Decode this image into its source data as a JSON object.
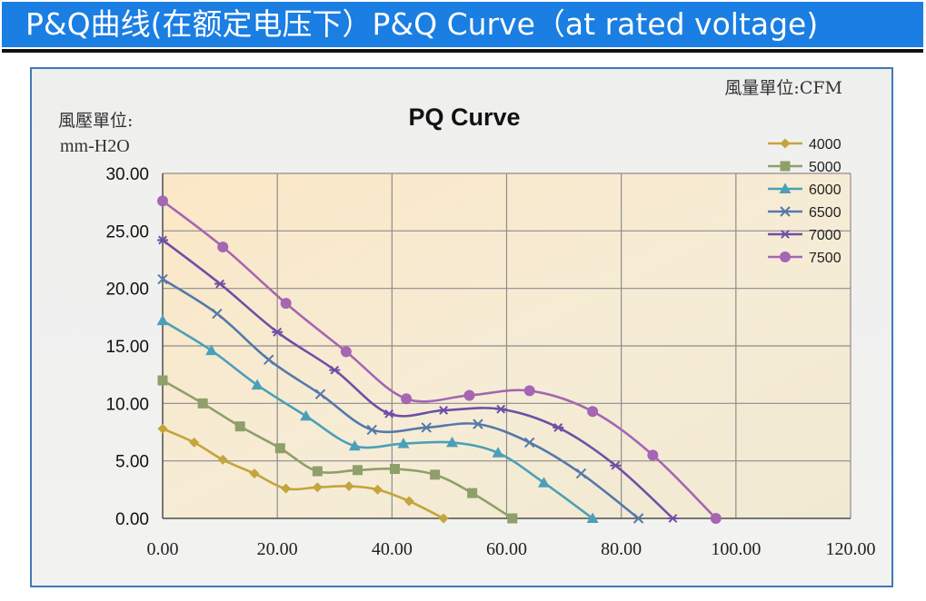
{
  "banner": {
    "title": "P&Q曲线(在额定电压下）P&Q Curve（at rated voltage)"
  },
  "chart_data": {
    "type": "line",
    "title": "PQ Curve",
    "ylabel_line1": "風壓單位:",
    "ylabel_line2": "mm-H2O",
    "xlabel": "風量單位:CFM",
    "xlim": [
      0,
      120
    ],
    "ylim": [
      0,
      30
    ],
    "xticks": [
      "0.00",
      "20.00",
      "40.00",
      "60.00",
      "80.00",
      "100.00",
      "120.00"
    ],
    "yticks": [
      "0.00",
      "5.00",
      "10.00",
      "15.00",
      "20.00",
      "25.00",
      "30.00"
    ],
    "grid": true,
    "legend_position": "top-right",
    "series": [
      {
        "name": "4000",
        "color": "#c4a43d",
        "marker": "diamond",
        "points": [
          [
            0,
            7.8
          ],
          [
            5.5,
            6.6
          ],
          [
            10.5,
            5.1
          ],
          [
            16,
            3.9
          ],
          [
            21.5,
            2.6
          ],
          [
            27,
            2.7
          ],
          [
            32.5,
            2.8
          ],
          [
            37.5,
            2.5
          ],
          [
            43,
            1.5
          ],
          [
            49,
            0
          ]
        ]
      },
      {
        "name": "5000",
        "color": "#8f9f6a",
        "marker": "square",
        "points": [
          [
            0,
            12
          ],
          [
            7,
            10
          ],
          [
            13.5,
            8
          ],
          [
            20.5,
            6.1
          ],
          [
            27,
            4.1
          ],
          [
            34,
            4.2
          ],
          [
            40.5,
            4.3
          ],
          [
            47.5,
            3.8
          ],
          [
            54,
            2.2
          ],
          [
            61,
            0
          ]
        ]
      },
      {
        "name": "6000",
        "color": "#4aa0b8",
        "marker": "triangle",
        "points": [
          [
            0,
            17.2
          ],
          [
            8.5,
            14.6
          ],
          [
            16.5,
            11.6
          ],
          [
            25,
            8.9
          ],
          [
            33.5,
            6.3
          ],
          [
            42,
            6.5
          ],
          [
            50.5,
            6.6
          ],
          [
            58.5,
            5.7
          ],
          [
            66.5,
            3.1
          ],
          [
            75,
            0
          ]
        ]
      },
      {
        "name": "6500",
        "color": "#5479aa",
        "marker": "x",
        "points": [
          [
            0,
            20.8
          ],
          [
            9.5,
            17.8
          ],
          [
            18.5,
            13.8
          ],
          [
            27.5,
            10.8
          ],
          [
            36.5,
            7.7
          ],
          [
            46,
            7.9
          ],
          [
            55,
            8.2
          ],
          [
            64,
            6.6
          ],
          [
            73,
            3.9
          ],
          [
            83,
            0
          ]
        ]
      },
      {
        "name": "7000",
        "color": "#6f4fa6",
        "marker": "star",
        "points": [
          [
            0,
            24.2
          ],
          [
            10,
            20.4
          ],
          [
            20,
            16.2
          ],
          [
            30,
            12.9
          ],
          [
            39.5,
            9.1
          ],
          [
            49,
            9.4
          ],
          [
            59,
            9.5
          ],
          [
            69,
            7.9
          ],
          [
            79,
            4.6
          ],
          [
            89,
            0
          ]
        ]
      },
      {
        "name": "7500",
        "color": "#a566b3",
        "marker": "circle",
        "points": [
          [
            0,
            27.6
          ],
          [
            10.5,
            23.6
          ],
          [
            21.5,
            18.7
          ],
          [
            32,
            14.5
          ],
          [
            42.5,
            10.4
          ],
          [
            53.5,
            10.7
          ],
          [
            64,
            11.1
          ],
          [
            75,
            9.3
          ],
          [
            85.5,
            5.5
          ],
          [
            96.5,
            0
          ]
        ]
      }
    ]
  }
}
